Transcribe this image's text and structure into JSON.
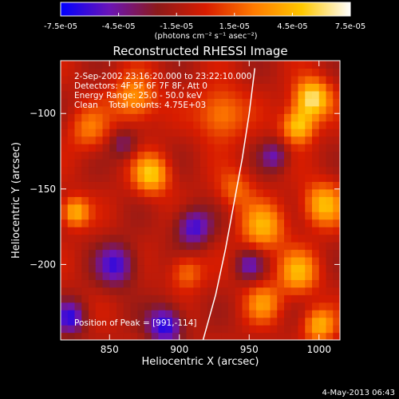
{
  "chart_data": {
    "type": "heatmap",
    "title": "Reconstructed RHESSI Image",
    "xlabel": "Heliocentric X (arcsec)",
    "ylabel": "Heliocentric Y (arcsec)",
    "xlim": [
      815,
      1015
    ],
    "ylim": [
      -250,
      -65
    ],
    "x_ticks": [
      850,
      900,
      950,
      1000
    ],
    "y_ticks": [
      -100,
      -150,
      -200
    ],
    "colorbar": {
      "range": [
        -7.5e-05,
        7.5e-05
      ],
      "tick_values": [
        -7.5e-05,
        -4.5e-05,
        -1.5e-05,
        1.5e-05,
        4.5e-05,
        7.5e-05
      ],
      "tick_labels": [
        "-7.5e-05",
        "-4.5e-05",
        "-1.5e-05",
        "1.5e-05",
        "4.5e-05",
        "7.5e-05"
      ],
      "unit_label": "(photons cm⁻² s⁻¹ asec⁻²)",
      "colors": [
        "#0000ff",
        "#6a14b8",
        "#8c1a1a",
        "#d81c00",
        "#ff7a00",
        "#ffc800",
        "#ffffff"
      ]
    },
    "annotations": [
      "2-Sep-2002 23:16:20.000 to 23:22:10.000",
      "Detectors: 4F 5F 6F 7F 8F, Att 0",
      "Energy Range: 25.0 - 50.0 keV",
      "Clean    Total counts: 4.75E+03"
    ],
    "peak_label": "Position of Peak = [991,-114]",
    "limb_curve": [
      [
        917,
        -250
      ],
      [
        926,
        -220
      ],
      [
        933,
        -190
      ],
      [
        939,
        -160
      ],
      [
        945,
        -130
      ],
      [
        950,
        -100
      ],
      [
        954,
        -70
      ]
    ],
    "sources": [
      {
        "x": 995,
        "y": -90,
        "sigma": 9,
        "amp": 7.5e-05
      },
      {
        "x": 985,
        "y": -108,
        "sigma": 8,
        "amp": 6.2e-05
      },
      {
        "x": 1003,
        "y": -160,
        "sigma": 10,
        "amp": 5.5e-05
      },
      {
        "x": 960,
        "y": -175,
        "sigma": 11,
        "amp": 5e-05
      },
      {
        "x": 985,
        "y": -205,
        "sigma": 10,
        "amp": 5e-05
      },
      {
        "x": 930,
        "y": -100,
        "sigma": 12,
        "amp": 4.2e-05
      },
      {
        "x": 880,
        "y": -140,
        "sigma": 9,
        "amp": 6e-05
      },
      {
        "x": 868,
        "y": -90,
        "sigma": 11,
        "amp": 4.6e-05
      },
      {
        "x": 825,
        "y": -165,
        "sigma": 7,
        "amp": 5.6e-05
      },
      {
        "x": 835,
        "y": -110,
        "sigma": 10,
        "amp": 3.2e-05
      },
      {
        "x": 960,
        "y": -225,
        "sigma": 9,
        "amp": 4e-05
      },
      {
        "x": 1000,
        "y": -240,
        "sigma": 8,
        "amp": 5.2e-05
      },
      {
        "x": 905,
        "y": -205,
        "sigma": 8,
        "amp": 3.5e-05
      },
      {
        "x": 940,
        "y": -150,
        "sigma": 9,
        "amp": 3e-05
      },
      {
        "x": 910,
        "y": -175,
        "sigma": 9,
        "amp": -5.2e-05
      },
      {
        "x": 855,
        "y": -200,
        "sigma": 10,
        "amp": -5e-05
      },
      {
        "x": 890,
        "y": -240,
        "sigma": 9,
        "amp": -6e-05
      },
      {
        "x": 950,
        "y": -200,
        "sigma": 7,
        "amp": -3.8e-05
      },
      {
        "x": 822,
        "y": -235,
        "sigma": 8,
        "amp": -5e-05
      },
      {
        "x": 860,
        "y": -120,
        "sigma": 7,
        "amp": -3e-05
      },
      {
        "x": 968,
        "y": -128,
        "sigma": 7,
        "amp": -3.6e-05
      }
    ]
  },
  "footer": {
    "date": "4-May-2013 06:43"
  }
}
